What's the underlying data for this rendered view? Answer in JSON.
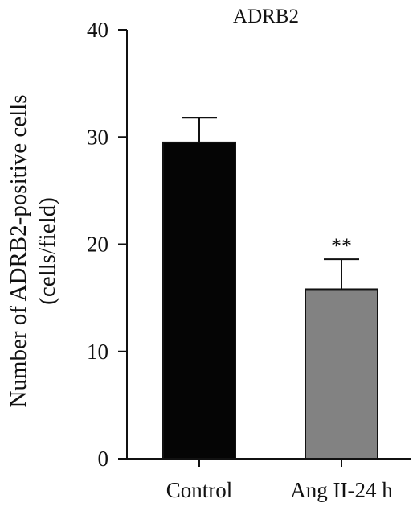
{
  "chart_data": {
    "type": "bar",
    "title": "ADRB2",
    "categories": [
      "Control",
      "Ang II-24 h"
    ],
    "values": [
      29.5,
      15.8
    ],
    "error_upper": [
      31.8,
      18.6
    ],
    "annotations": [
      "",
      "**"
    ],
    "xlabel": "",
    "ylabel_lines": [
      "Number of ADRB2-positive cells",
      "(cells/field)"
    ],
    "ylim": [
      0,
      40
    ],
    "yticks": [
      0,
      10,
      20,
      30,
      40
    ],
    "bar_colors": [
      "#050505",
      "#828282"
    ],
    "grid": false,
    "legend": "none"
  }
}
